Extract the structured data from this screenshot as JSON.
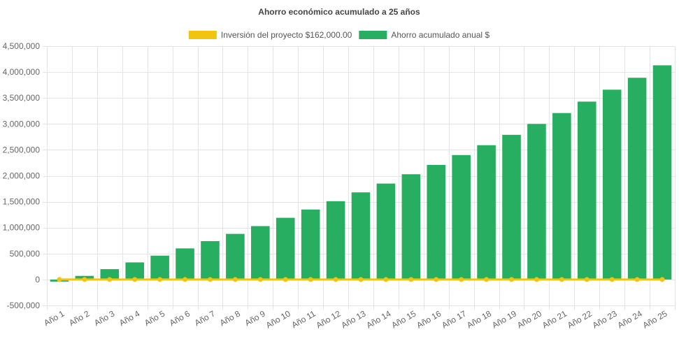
{
  "chart_data": {
    "type": "bar",
    "title": "Ahorro económico acumulado a 25 años",
    "categories": [
      "Año 1",
      "Año 2",
      "Año 3",
      "Año 4",
      "Año 5",
      "Año 6",
      "Año 7",
      "Año 8",
      "Año 9",
      "Año 10",
      "Año 11",
      "Año 12",
      "Año 13",
      "Año 14",
      "Año 15",
      "Año 16",
      "Año 17",
      "Año 18",
      "Año 19",
      "Año 20",
      "Año 21",
      "Año 22",
      "Año 23",
      "Año 24",
      "Año 25"
    ],
    "series": [
      {
        "name": "Inversión del proyecto $162,000.00",
        "type": "line",
        "color": "#f1c40f",
        "values": [
          0,
          0,
          0,
          0,
          0,
          0,
          0,
          0,
          0,
          0,
          0,
          0,
          0,
          0,
          0,
          0,
          0,
          0,
          0,
          0,
          0,
          0,
          0,
          0,
          0
        ]
      },
      {
        "name": "Ahorro acumulado anual $",
        "type": "bar",
        "color": "#27ae60",
        "values": [
          -40000,
          70000,
          200000,
          330000,
          460000,
          600000,
          740000,
          880000,
          1030000,
          1190000,
          1350000,
          1510000,
          1680000,
          1850000,
          2030000,
          2210000,
          2400000,
          2590000,
          2790000,
          3000000,
          3210000,
          3430000,
          3660000,
          3890000,
          4130000
        ]
      }
    ],
    "ylim": [
      -500000,
      4500000
    ],
    "yticks": [
      -500000,
      0,
      500000,
      1000000,
      1500000,
      2000000,
      2500000,
      3000000,
      3500000,
      4000000,
      4500000
    ],
    "ytick_labels": [
      "-500,000",
      "0",
      "500,000",
      "1,000,000",
      "1,500,000",
      "2,000,000",
      "2,500,000",
      "3,000,000",
      "3,500,000",
      "4,000,000",
      "4,500,000"
    ],
    "grid": true,
    "legend_position": "top-center",
    "xlabel": "",
    "ylabel": ""
  }
}
